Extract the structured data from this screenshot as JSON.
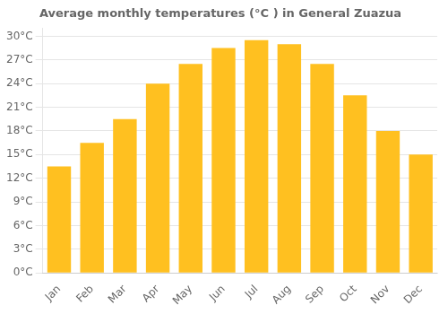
{
  "chart_data": {
    "type": "bar",
    "title": "Average monthly temperatures (°C ) in General Zuazua",
    "categories": [
      "Jan",
      "Feb",
      "Mar",
      "Apr",
      "May",
      "Jun",
      "Jul",
      "Aug",
      "Sep",
      "Oct",
      "Nov",
      "Dec"
    ],
    "values": [
      13.5,
      16.5,
      19.5,
      24.0,
      26.5,
      28.5,
      29.5,
      29.0,
      26.5,
      22.5,
      18.0,
      15.0
    ],
    "color": "#FFC020",
    "ylim": [
      0,
      31
    ],
    "yticks": [
      {
        "value": 0,
        "label": "0°C"
      },
      {
        "value": 3,
        "label": "3°C"
      },
      {
        "value": 6,
        "label": "6°C"
      },
      {
        "value": 9,
        "label": "9°C"
      },
      {
        "value": 12,
        "label": "12°C"
      },
      {
        "value": 15,
        "label": "15°C"
      },
      {
        "value": 18,
        "label": "18°C"
      },
      {
        "value": 21,
        "label": "21°C"
      },
      {
        "value": 24,
        "label": "24°C"
      },
      {
        "value": 27,
        "label": "27°C"
      },
      {
        "value": 30,
        "label": "30°C"
      }
    ],
    "grid": true
  }
}
